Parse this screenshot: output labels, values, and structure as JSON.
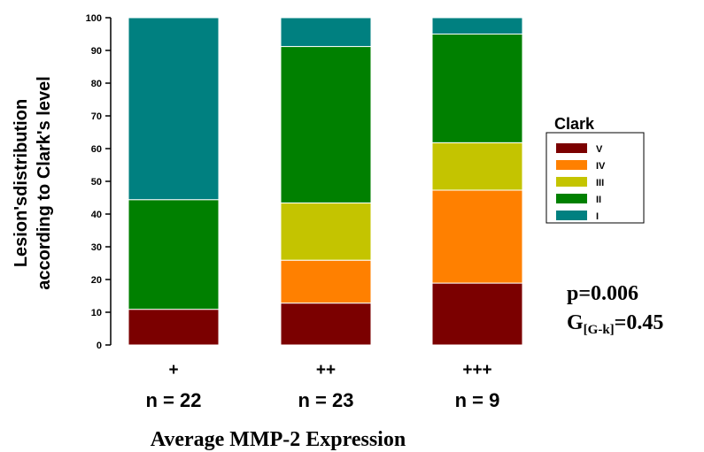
{
  "chart_data": {
    "type": "bar",
    "stacked": true,
    "categories": [
      "+",
      "++",
      "+++"
    ],
    "n_labels": [
      "n = 22",
      "n = 23",
      "n = 9"
    ],
    "series": [
      {
        "name": "V",
        "color": "#7b0000",
        "values": [
          10.9,
          12.8,
          18.9
        ]
      },
      {
        "name": "IV",
        "color": "#ff8000",
        "values": [
          0,
          13.1,
          28.4
        ]
      },
      {
        "name": "III",
        "color": "#c4c400",
        "values": [
          0,
          17.5,
          14.5
        ]
      },
      {
        "name": "II",
        "color": "#008000",
        "values": [
          33.5,
          47.8,
          33.2
        ]
      },
      {
        "name": "I",
        "color": "#008080",
        "values": [
          55.6,
          8.8,
          5.0
        ]
      }
    ],
    "ylabel_lines": [
      "Lesion'sdistribution",
      "according to Clark's level"
    ],
    "xlabel": "Average MMP-2 Expression",
    "ylim": [
      0,
      100
    ],
    "yticks": [
      0,
      10,
      20,
      30,
      40,
      50,
      60,
      70,
      80,
      90,
      100
    ],
    "legend": {
      "title": "Clark",
      "placement": "right",
      "order": [
        "V",
        "IV",
        "III",
        "II",
        "I"
      ]
    },
    "annotations": {
      "p_value": "p=0.006",
      "g_prefix": "G",
      "g_sub": "[G-k]",
      "g_value": "=0.45"
    }
  }
}
